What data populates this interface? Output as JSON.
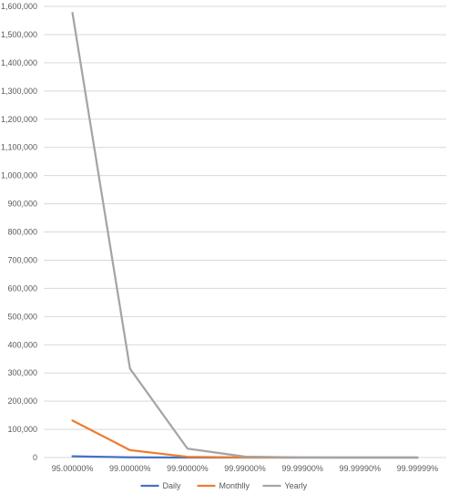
{
  "chart_data": {
    "type": "line",
    "title": "",
    "xlabel": "",
    "ylabel": "",
    "categories": [
      "95.00000%",
      "99.00000%",
      "99.90000%",
      "99.99000%",
      "99.99900%",
      "99.99990%",
      "99.99999%"
    ],
    "series": [
      {
        "name": "Daily",
        "color": "#4472C4",
        "values": [
          4320,
          864,
          86.4,
          8.64,
          0.864,
          0.0864,
          0.00864
        ]
      },
      {
        "name": "Monthlly",
        "color": "#ED7D31",
        "values": [
          131400,
          26280,
          2628,
          262.8,
          26.28,
          2.628,
          0.2628
        ]
      },
      {
        "name": "Yearly",
        "color": "#A5A5A5",
        "values": [
          1576800,
          315360,
          31536,
          3153.6,
          315.36,
          31.536,
          3.1536
        ]
      }
    ],
    "ylim": [
      0,
      1600000
    ],
    "y_ticks": [
      "0",
      "100,000",
      "200,000",
      "300,000",
      "400,000",
      "500,000",
      "600,000",
      "700,000",
      "800,000",
      "900,000",
      "1,000,000",
      "1,100,000",
      "1,200,000",
      "1,300,000",
      "1,400,000",
      "1,500,000",
      "1,600,000"
    ],
    "grid": true,
    "legend_position": "bottom"
  }
}
